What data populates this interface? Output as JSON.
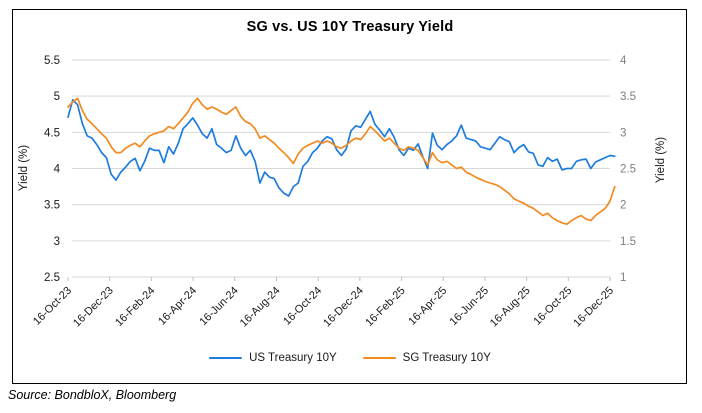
{
  "source_text": "Source: BondbloX, Bloomberg",
  "chart_data": {
    "type": "line",
    "title": "SG vs. US 10Y Treasury Yield",
    "x_start_label": "16-Oct-23",
    "x_end_label": "16-Dec-25",
    "x_point_interval": "weekly",
    "x_tick_labels": [
      "16-Oct-23",
      "16-Dec-23",
      "16-Feb-24",
      "16-Apr-24",
      "16-Jun-24",
      "16-Aug-24",
      "16-Oct-24",
      "16-Dec-24",
      "16-Feb-25",
      "16-Apr-25",
      "16-Jun-25",
      "16-Aug-25",
      "16-Oct-25",
      "16-Dec-25"
    ],
    "left_axis": {
      "label": "Yield (%)",
      "min": 2.5,
      "max": 5.5,
      "step": 0.5,
      "tick_labels": [
        "5.5",
        "5",
        "4.5",
        "4",
        "3.5",
        "3",
        "2.5"
      ]
    },
    "right_axis": {
      "label": "Yield (%)",
      "min": 1,
      "max": 4,
      "step": 0.5,
      "tick_labels": [
        "4",
        "3.5",
        "3",
        "2.5",
        "2",
        "1.5",
        "1"
      ]
    },
    "grid": true,
    "legend_position": "bottom",
    "style": {
      "grid_color": "#D9D9D9",
      "tick_color": "#BFBFBF",
      "left_label_color": "#1a1a1a",
      "right_label_color": "#7f7f7f",
      "x_label_color": "#1a1a1a"
    },
    "series": [
      {
        "name": "US Treasury 10Y",
        "axis": "left",
        "color": "#1E7CDE",
        "values": [
          4.71,
          4.95,
          4.88,
          4.62,
          4.45,
          4.42,
          4.33,
          4.22,
          4.15,
          3.92,
          3.84,
          3.95,
          4.02,
          4.1,
          4.14,
          3.97,
          4.1,
          4.28,
          4.25,
          4.25,
          4.08,
          4.3,
          4.2,
          4.35,
          4.55,
          4.62,
          4.7,
          4.6,
          4.48,
          4.42,
          4.55,
          4.33,
          4.28,
          4.22,
          4.25,
          4.45,
          4.28,
          4.18,
          4.25,
          4.1,
          3.8,
          3.95,
          3.88,
          3.86,
          3.73,
          3.66,
          3.62,
          3.75,
          3.8,
          4.03,
          4.1,
          4.22,
          4.28,
          4.38,
          4.44,
          4.41,
          4.26,
          4.18,
          4.27,
          4.52,
          4.59,
          4.57,
          4.68,
          4.79,
          4.61,
          4.53,
          4.44,
          4.55,
          4.43,
          4.26,
          4.18,
          4.28,
          4.25,
          4.34,
          4.16,
          4.0,
          4.49,
          4.32,
          4.26,
          4.33,
          4.38,
          4.45,
          4.6,
          4.42,
          4.4,
          4.38,
          4.3,
          4.28,
          4.26,
          4.35,
          4.44,
          4.4,
          4.37,
          4.22,
          4.29,
          4.33,
          4.23,
          4.21,
          4.05,
          4.03,
          4.15,
          4.1,
          4.13,
          3.98,
          4.0,
          4.0,
          4.1,
          4.12,
          4.13,
          4.0,
          4.09,
          4.12,
          4.15,
          4.18,
          4.17
        ]
      },
      {
        "name": "SG Treasury 10Y",
        "axis": "right",
        "color": "#F28A20",
        "values": [
          3.35,
          3.42,
          3.47,
          3.3,
          3.18,
          3.12,
          3.05,
          2.98,
          2.92,
          2.8,
          2.72,
          2.72,
          2.78,
          2.82,
          2.85,
          2.8,
          2.88,
          2.95,
          2.98,
          3.0,
          3.02,
          3.08,
          3.05,
          3.12,
          3.2,
          3.28,
          3.4,
          3.47,
          3.38,
          3.32,
          3.35,
          3.32,
          3.28,
          3.25,
          3.3,
          3.35,
          3.22,
          3.15,
          3.12,
          3.05,
          2.92,
          2.95,
          2.9,
          2.85,
          2.78,
          2.72,
          2.65,
          2.57,
          2.7,
          2.78,
          2.82,
          2.85,
          2.88,
          2.85,
          2.88,
          2.85,
          2.8,
          2.78,
          2.82,
          2.88,
          2.92,
          2.9,
          2.98,
          3.08,
          3.02,
          2.95,
          2.88,
          2.92,
          2.85,
          2.78,
          2.75,
          2.8,
          2.78,
          2.75,
          2.65,
          2.55,
          2.72,
          2.62,
          2.58,
          2.6,
          2.55,
          2.5,
          2.52,
          2.45,
          2.42,
          2.38,
          2.35,
          2.32,
          2.3,
          2.28,
          2.25,
          2.2,
          2.15,
          2.08,
          2.05,
          2.02,
          1.98,
          1.95,
          1.9,
          1.85,
          1.88,
          1.82,
          1.78,
          1.75,
          1.73,
          1.78,
          1.82,
          1.85,
          1.8,
          1.78,
          1.85,
          1.9,
          1.95,
          2.05,
          2.25
        ]
      }
    ]
  }
}
